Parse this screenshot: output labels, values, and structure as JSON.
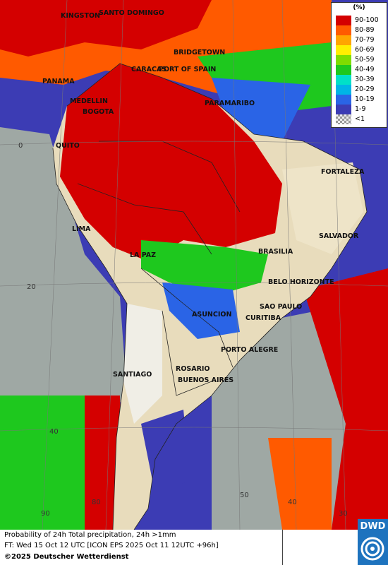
{
  "map": {
    "cities": [
      {
        "name": "KINGSTON"
      },
      {
        "name": "SANTO DOMINGO"
      },
      {
        "name": "BRIDGETOWN"
      },
      {
        "name": "CARACAS"
      },
      {
        "name": "PORT OF SPAIN"
      },
      {
        "name": "PANAMA"
      },
      {
        "name": "MEDELLIN"
      },
      {
        "name": "BOGOTA"
      },
      {
        "name": "PARAMARIBO"
      },
      {
        "name": "QUITO"
      },
      {
        "name": "FORTALEZA"
      },
      {
        "name": "LIMA"
      },
      {
        "name": "SALVADOR"
      },
      {
        "name": "LA PAZ"
      },
      {
        "name": "BRASILIA"
      },
      {
        "name": "BELO HORIZONTE"
      },
      {
        "name": "SAO PAULO"
      },
      {
        "name": "ASUNCION"
      },
      {
        "name": "CURITIBA"
      },
      {
        "name": "PORTO ALEGRE"
      },
      {
        "name": "ROSARIO"
      },
      {
        "name": "BUENOS AIRES"
      },
      {
        "name": "SANTIAGO"
      }
    ],
    "grid_labels": [
      "0",
      "20",
      "40",
      "90",
      "80",
      "50",
      "40",
      "30"
    ]
  },
  "legend": {
    "unit": "(%)",
    "entries": [
      {
        "label": "90-100",
        "color": "#d40000"
      },
      {
        "label": "80-89",
        "color": "#ff5a00"
      },
      {
        "label": "70-79",
        "color": "#ffa500"
      },
      {
        "label": "60-69",
        "color": "#ffee00"
      },
      {
        "label": "50-59",
        "color": "#7fdc00"
      },
      {
        "label": "40-49",
        "color": "#1ec81e"
      },
      {
        "label": "30-39",
        "color": "#00e0c8"
      },
      {
        "label": "20-29",
        "color": "#00b4e6"
      },
      {
        "label": "10-19",
        "color": "#2a64e6"
      },
      {
        "label": "1-9",
        "color": "#3c3cb4"
      },
      {
        "label": "<1",
        "color": "#bbbbbb"
      }
    ]
  },
  "footer": {
    "line1": "Probability of 24h Total precipitation, 24h >1mm",
    "line2": "FT: Wed 15 Oct 12 UTC [ICON EPS 2025 Oct 11 12UTC +96h]",
    "line3": "©2025 Deutscher Wetterdienst"
  },
  "logo": {
    "text": "DWD"
  }
}
